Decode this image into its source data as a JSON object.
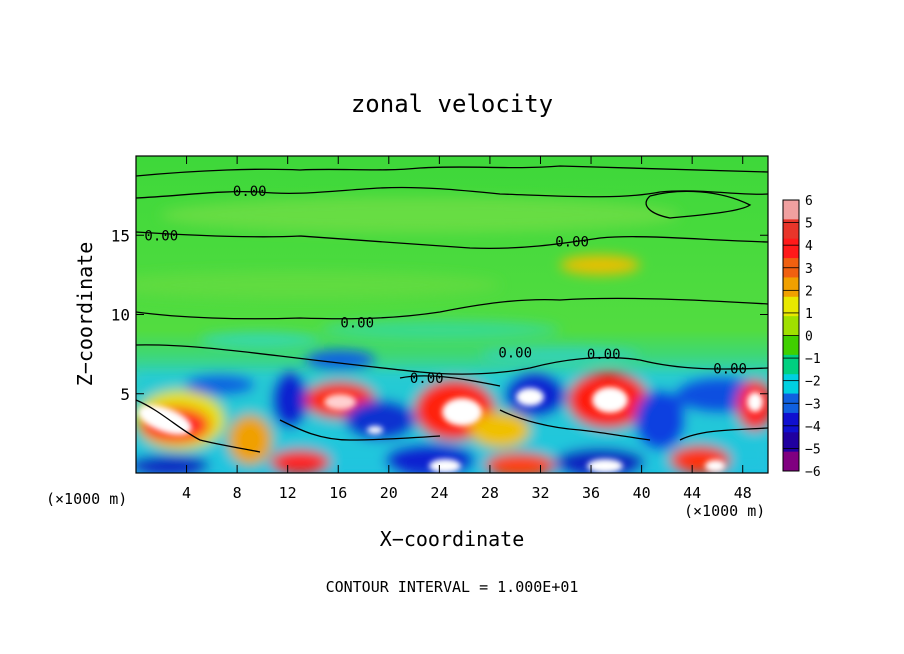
{
  "chart_data": {
    "type": "heatmap",
    "title": "zonal velocity",
    "xlabel": "X−coordinate",
    "ylabel": "Z−coordinate",
    "x_unit_left": "(×1000 m)",
    "x_unit_right": "(×1000 m)",
    "x_ticks": [
      "4",
      "8",
      "12",
      "16",
      "20",
      "24",
      "28",
      "32",
      "36",
      "40",
      "44",
      "48"
    ],
    "x_tick_values": [
      4,
      8,
      12,
      16,
      20,
      24,
      28,
      32,
      36,
      40,
      44,
      48
    ],
    "y_ticks": [
      "5",
      "10",
      "15"
    ],
    "y_tick_values": [
      5,
      10,
      15
    ],
    "xlim": [
      0,
      50
    ],
    "ylim": [
      0,
      20
    ],
    "colorbar_labels": [
      "6",
      "5",
      "4",
      "3",
      "2",
      "1",
      "0",
      "−1",
      "−2",
      "−3",
      "−4",
      "−5",
      "−6"
    ],
    "colorbar_values": [
      6,
      5,
      4,
      3,
      2,
      1,
      0,
      -1,
      -2,
      -3,
      -4,
      -5,
      -6
    ],
    "colorbar_colors": [
      "#f0a0a0",
      "#e8352a",
      "#ff1a1a",
      "#f06010",
      "#f0a000",
      "#e8e800",
      "#a0e000",
      "#40d000",
      "#00d080",
      "#00d0e0",
      "#1060e0",
      "#1010d0",
      "#2000a0",
      "#800080"
    ],
    "contour_labels": [
      {
        "text": "0.00",
        "x": 9,
        "y": 17.8
      },
      {
        "text": "0.00",
        "x": 2,
        "y": 15.0
      },
      {
        "text": "0.00",
        "x": 34.5,
        "y": 14.6
      },
      {
        "text": "0.00",
        "x": 17.5,
        "y": 9.5
      },
      {
        "text": "0.00",
        "x": 30,
        "y": 7.6
      },
      {
        "text": "0.00",
        "x": 37,
        "y": 7.5
      },
      {
        "text": "0.00",
        "x": 23,
        "y": 6.0
      },
      {
        "text": "0.00",
        "x": 47,
        "y": 6.6
      }
    ],
    "footer": "CONTOUR INTERVAL = 1.000E+01"
  }
}
